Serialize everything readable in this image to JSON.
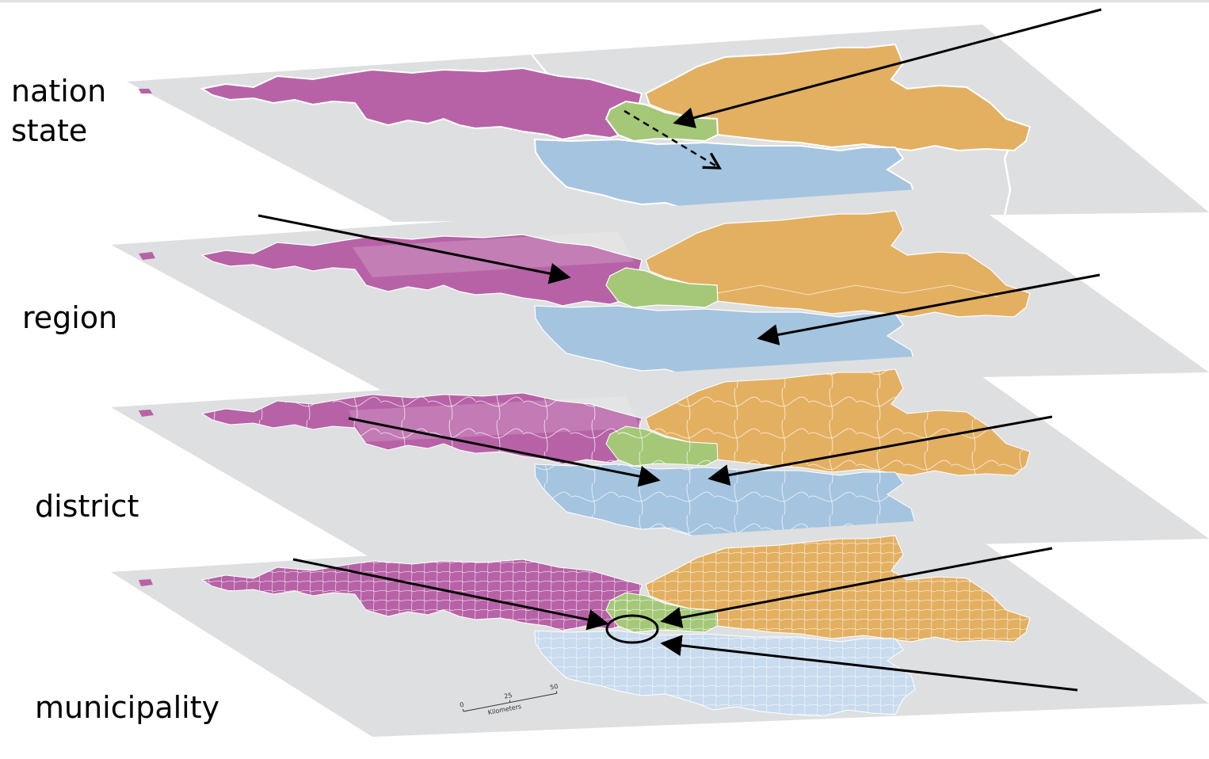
{
  "labels": {
    "nation_state": "nation\nstate",
    "region": "region",
    "district": "district",
    "municipality": "municipality"
  },
  "scalebar": {
    "ticks": [
      "0",
      "25",
      "50"
    ],
    "unit": "Kilometers"
  },
  "colors": {
    "plane": "#dedfe0",
    "north_west_region": "#b762a7",
    "north_east_region": "#e3b062",
    "center_region": "#a4c878",
    "south_region": "#a5c4e0",
    "boundary": "#ffffff",
    "arrow": "#000000"
  }
}
